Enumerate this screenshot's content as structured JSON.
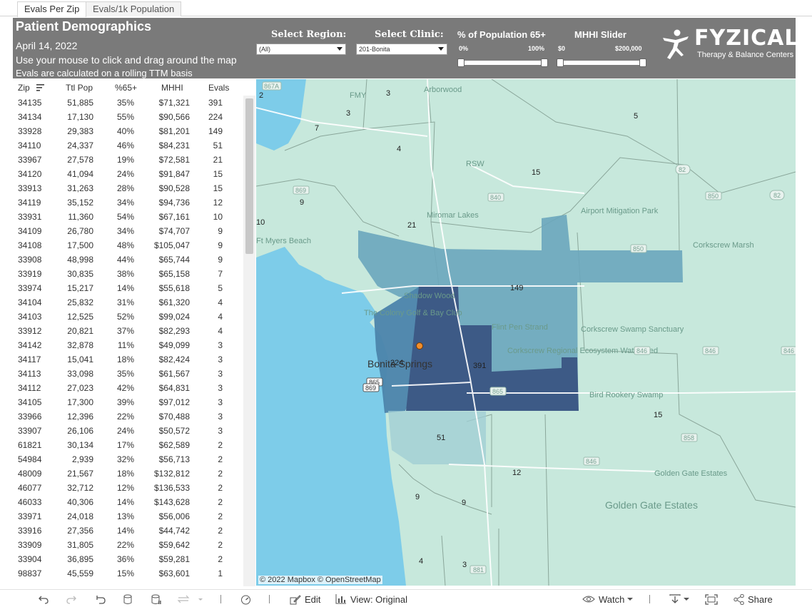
{
  "tabs": [
    {
      "label": "Evals Per Zip",
      "active": true
    },
    {
      "label": "Evals/1k Population",
      "active": false
    }
  ],
  "header": {
    "title": "Patient Demographics",
    "date": "April 14, 2022",
    "line1": "Use your mouse to click and drag around the map",
    "line2": "Evals are calculated on a rolling TTM basis"
  },
  "filters": {
    "region": {
      "label": "Select Region:",
      "value": "(All)"
    },
    "clinic": {
      "label": "Select Clinic:",
      "value": "201-Bonita"
    },
    "pop65": {
      "label": "% of Population 65+",
      "min": "0%",
      "max": "100%"
    },
    "mhhi": {
      "label": "MHHI Slider",
      "min": "$0",
      "max": "$200,000"
    }
  },
  "logo": {
    "name": "FYZICAL",
    "tagline": "Therapy & Balance Centers",
    "icon": "fyzical-figure-icon"
  },
  "table": {
    "columns": [
      "Zip",
      "Ttl Pop",
      "%65+",
      "MHHI",
      "Evals"
    ],
    "rows": [
      [
        "34135",
        "51,885",
        "35%",
        "$71,321",
        "391"
      ],
      [
        "34134",
        "17,130",
        "55%",
        "$90,566",
        "224"
      ],
      [
        "33928",
        "29,383",
        "40%",
        "$81,201",
        "149"
      ],
      [
        "34110",
        "24,337",
        "46%",
        "$84,231",
        "51"
      ],
      [
        "33967",
        "27,578",
        "19%",
        "$72,581",
        "21"
      ],
      [
        "34120",
        "41,094",
        "24%",
        "$91,847",
        "15"
      ],
      [
        "33913",
        "31,263",
        "28%",
        "$90,528",
        "15"
      ],
      [
        "34119",
        "35,152",
        "34%",
        "$94,736",
        "12"
      ],
      [
        "33931",
        "11,360",
        "54%",
        "$67,161",
        "10"
      ],
      [
        "34109",
        "26,780",
        "34%",
        "$74,707",
        "9"
      ],
      [
        "34108",
        "17,500",
        "48%",
        "$105,047",
        "9"
      ],
      [
        "33908",
        "48,998",
        "44%",
        "$65,744",
        "9"
      ],
      [
        "33919",
        "30,835",
        "38%",
        "$65,158",
        "7"
      ],
      [
        "33974",
        "15,217",
        "14%",
        "$55,618",
        "5"
      ],
      [
        "34104",
        "25,832",
        "31%",
        "$61,320",
        "4"
      ],
      [
        "34103",
        "12,525",
        "52%",
        "$99,024",
        "4"
      ],
      [
        "33912",
        "20,821",
        "37%",
        "$82,293",
        "4"
      ],
      [
        "34142",
        "32,878",
        "11%",
        "$49,099",
        "3"
      ],
      [
        "34117",
        "15,041",
        "18%",
        "$82,424",
        "3"
      ],
      [
        "34113",
        "33,098",
        "35%",
        "$61,567",
        "3"
      ],
      [
        "34112",
        "27,023",
        "42%",
        "$64,831",
        "3"
      ],
      [
        "34105",
        "17,300",
        "39%",
        "$97,012",
        "3"
      ],
      [
        "33966",
        "12,396",
        "22%",
        "$70,488",
        "3"
      ],
      [
        "33907",
        "26,106",
        "24%",
        "$50,572",
        "3"
      ],
      [
        "61821",
        "30,134",
        "17%",
        "$62,589",
        "2"
      ],
      [
        "54984",
        "2,939",
        "32%",
        "$56,713",
        "2"
      ],
      [
        "48009",
        "21,567",
        "18%",
        "$132,812",
        "2"
      ],
      [
        "46077",
        "32,712",
        "12%",
        "$136,533",
        "2"
      ],
      [
        "46033",
        "40,306",
        "14%",
        "$143,628",
        "2"
      ],
      [
        "33971",
        "24,018",
        "13%",
        "$56,006",
        "2"
      ],
      [
        "33916",
        "27,356",
        "14%",
        "$44,742",
        "2"
      ],
      [
        "33909",
        "31,805",
        "22%",
        "$59,642",
        "2"
      ],
      [
        "33904",
        "36,895",
        "36%",
        "$59,281",
        "2"
      ],
      [
        "98837",
        "45,559",
        "15%",
        "$63,601",
        "1"
      ]
    ]
  },
  "map": {
    "attribution": "© 2022 Mapbox © OpenStreetMap",
    "eval_labels": [
      "2",
      "3",
      "3",
      "7",
      "4",
      "5",
      "15",
      "9",
      "21",
      "10",
      "149",
      "224",
      "391",
      "51",
      "15",
      "12",
      "9",
      "9",
      "4",
      "3"
    ],
    "places": [
      "Arborwood",
      "Miromar Lakes",
      "Airport Mitigation Park",
      "Corkscrew Marsh",
      "Shadow Wood",
      "The Colony Golf & Bay Club",
      "Flint Pen Strand",
      "Corkscrew Regional Ecosystem Watershed",
      "Corkscrew Swamp Sanctuary",
      "Bonita Springs",
      "Bird Rookery Swamp",
      "Golden Gate Estates",
      "Golden Gate Estates",
      "RSW",
      "FMY",
      "Ft Myers Beach"
    ],
    "road_shields": [
      "867A",
      "869",
      "840",
      "850",
      "82",
      "82",
      "850",
      "865",
      "865",
      "846",
      "846",
      "846",
      "858",
      "846",
      "881",
      "869"
    ],
    "highlight_color": "#3d5a86",
    "clinic_marker_color": "#f28e2b"
  },
  "toolbar": {
    "edit": "Edit",
    "view": "View: Original",
    "watch": "Watch",
    "share": "Share"
  }
}
